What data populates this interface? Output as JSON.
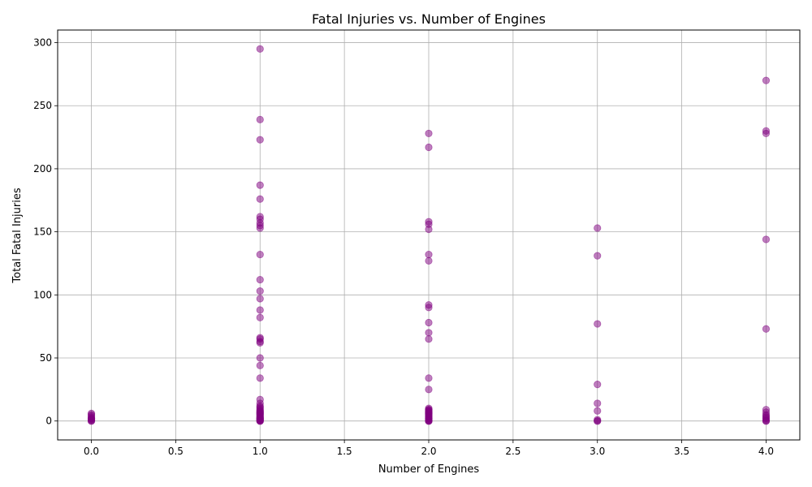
{
  "chart_data": {
    "type": "scatter",
    "title": "Fatal Injuries vs. Number of Engines",
    "xlabel": "Number of Engines",
    "ylabel": "Total Fatal Injuries",
    "xlim": [
      -0.2,
      4.2
    ],
    "ylim": [
      -15,
      310
    ],
    "xticks": [
      0.0,
      0.5,
      1.0,
      1.5,
      2.0,
      2.5,
      3.0,
      3.5,
      4.0
    ],
    "xtick_labels": [
      "0.0",
      "0.5",
      "1.0",
      "1.5",
      "2.0",
      "2.5",
      "3.0",
      "3.5",
      "4.0"
    ],
    "yticks": [
      0,
      50,
      100,
      150,
      200,
      250,
      300
    ],
    "ytick_labels": [
      "0",
      "50",
      "100",
      "150",
      "200",
      "250",
      "300"
    ],
    "grid": true,
    "marker_color": "#800080",
    "marker_alpha": 0.5,
    "series": [
      {
        "x": [
          0,
          0,
          0,
          0,
          0,
          0,
          0,
          0,
          0,
          0,
          1,
          1,
          1,
          1,
          1,
          1,
          1,
          1,
          1,
          1,
          1,
          1,
          1,
          1,
          1,
          1,
          1,
          1,
          1,
          1,
          1,
          1,
          1,
          1,
          1,
          1,
          1,
          1,
          1,
          1,
          1,
          1,
          1,
          1,
          1,
          1,
          1,
          1,
          1,
          1,
          1,
          1,
          1,
          1,
          1,
          1,
          1,
          1,
          1,
          1,
          2,
          2,
          2,
          2,
          2,
          2,
          2,
          2,
          2,
          2,
          2,
          2,
          2,
          2,
          2,
          2,
          2,
          2,
          2,
          2,
          2,
          2,
          2,
          2,
          2,
          2,
          2,
          2,
          2,
          2,
          2,
          2,
          2,
          2,
          2,
          2,
          3,
          3,
          3,
          3,
          3,
          3,
          3,
          3,
          3,
          4,
          4,
          4,
          4,
          4,
          4,
          4,
          4,
          4,
          4,
          4,
          4,
          4,
          4
        ],
        "y": [
          0,
          1,
          2,
          3,
          4,
          5,
          6,
          0,
          1,
          2,
          295,
          239,
          223,
          187,
          176,
          162,
          160,
          157,
          155,
          153,
          132,
          112,
          103,
          97,
          88,
          82,
          66,
          65,
          63,
          62,
          50,
          44,
          34,
          17,
          14,
          12,
          11,
          10,
          9,
          8,
          7,
          6,
          5,
          4,
          3,
          2,
          1,
          0,
          0,
          1,
          2,
          3,
          4,
          5,
          6,
          7,
          8,
          0,
          1,
          2,
          228,
          217,
          158,
          156,
          152,
          132,
          127,
          92,
          90,
          78,
          70,
          65,
          34,
          25,
          10,
          9,
          8,
          7,
          6,
          5,
          4,
          3,
          2,
          1,
          0,
          0,
          1,
          2,
          3,
          4,
          5,
          6,
          7,
          8,
          9,
          0,
          153,
          131,
          77,
          29,
          14,
          8,
          1,
          0,
          0,
          270,
          230,
          228,
          144,
          73,
          9,
          7,
          5,
          4,
          3,
          2,
          1,
          0,
          0
        ]
      }
    ]
  }
}
